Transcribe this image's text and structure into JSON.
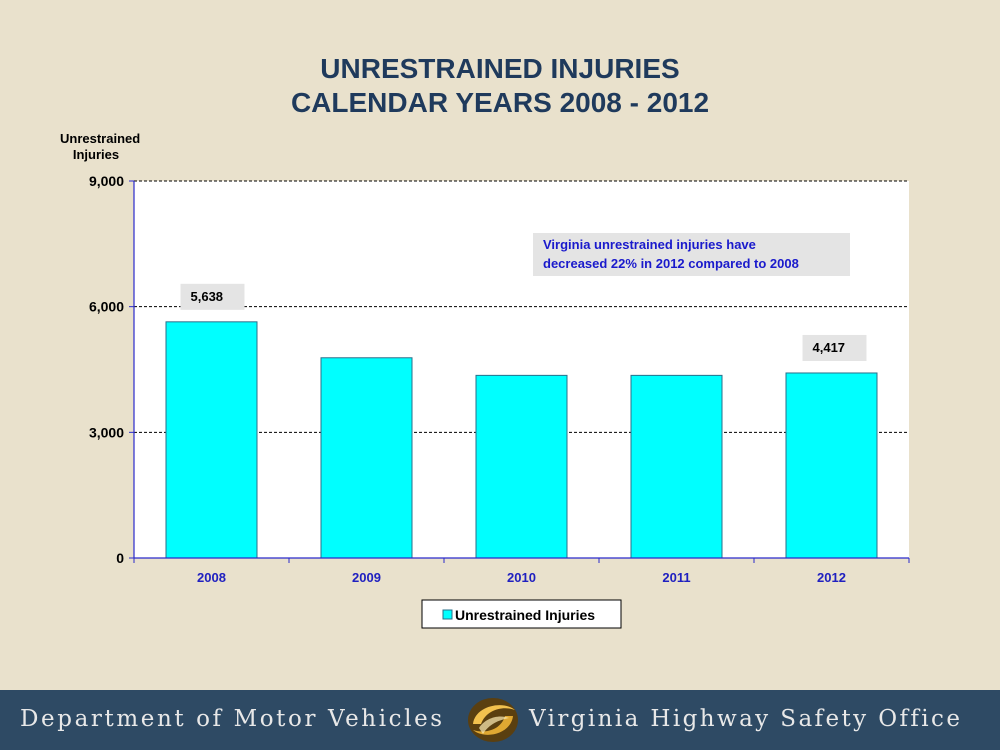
{
  "slide": {
    "title_line1": "UNRESTRAINED INJURIES",
    "title_line2": "CALENDAR YEARS 2008 - 2012",
    "callout": "Virginia unrestrained injuries have decreased 22%  in 2012 compared to 2008"
  },
  "footer": {
    "left_text": "Department of Motor Vehicles",
    "right_text": "Virginia Highway Safety Office",
    "logo_icon": "gold-swirl-logo-icon"
  },
  "chart_data": {
    "type": "bar",
    "ylabel_line1": "Unrestrained",
    "ylabel_line2": "Injuries",
    "categories": [
      "2008",
      "2009",
      "2010",
      "2011",
      "2012"
    ],
    "series": [
      {
        "name": "Unrestrained Injuries",
        "values": [
          5638,
          4780,
          4360,
          4360,
          4417
        ]
      }
    ],
    "data_labels": [
      "5,638",
      "",
      "",
      "",
      "4,417"
    ],
    "ylim": [
      0,
      9000
    ],
    "yticks": [
      0,
      3000,
      6000,
      9000
    ],
    "ytick_labels": [
      "0",
      "3,000",
      "6,000",
      "9,000"
    ],
    "grid": true,
    "legend": "bottom-center",
    "colors": {
      "bar": "#00ffff",
      "bar_edge": "#2a6f8a",
      "axis": "#2a2acc",
      "category_text": "#2020c0",
      "callout_text": "#1a1acc"
    }
  }
}
